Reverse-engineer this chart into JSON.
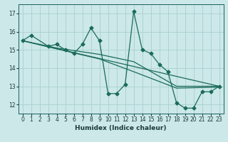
{
  "xlabel": "Humidex (Indice chaleur)",
  "xlim": [
    -0.5,
    23.5
  ],
  "ylim": [
    11.5,
    17.5
  ],
  "yticks": [
    12,
    13,
    14,
    15,
    16,
    17
  ],
  "xticks": [
    0,
    1,
    2,
    3,
    4,
    5,
    6,
    7,
    8,
    9,
    10,
    11,
    12,
    13,
    14,
    15,
    16,
    17,
    18,
    19,
    20,
    21,
    22,
    23
  ],
  "bg_color": "#cce8e8",
  "grid_color": "#aacfcf",
  "line_color": "#1a6b5a",
  "main_x": [
    0,
    1,
    3,
    4,
    5,
    6,
    7,
    8,
    9,
    10,
    11,
    12,
    13,
    14,
    15,
    16,
    17,
    18,
    19,
    20,
    21,
    22,
    23
  ],
  "main_y": [
    15.5,
    15.8,
    15.2,
    15.3,
    15.0,
    14.8,
    15.3,
    16.2,
    15.5,
    12.6,
    12.6,
    13.1,
    17.1,
    15.0,
    14.8,
    14.2,
    13.8,
    12.1,
    11.8,
    11.8,
    12.7,
    12.7,
    13.0
  ],
  "line2_x": [
    0,
    4,
    9,
    13,
    18,
    23
  ],
  "line2_y": [
    15.5,
    15.1,
    14.75,
    14.35,
    13.0,
    13.0
  ],
  "line3_x": [
    0,
    4,
    9,
    13,
    18,
    23
  ],
  "line3_y": [
    15.5,
    15.05,
    14.5,
    13.8,
    12.9,
    12.95
  ],
  "line4_x": [
    0,
    23
  ],
  "line4_y": [
    15.5,
    13.0
  ]
}
